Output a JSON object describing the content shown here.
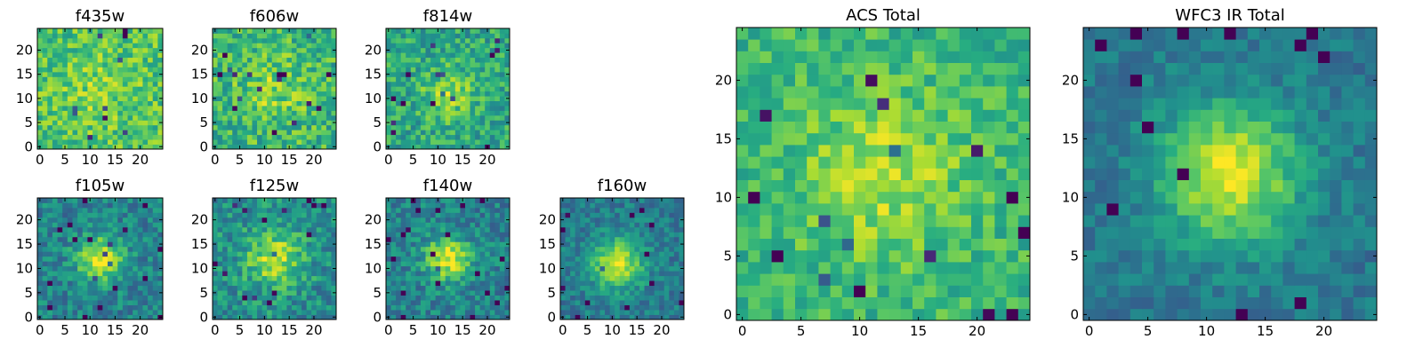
{
  "figure": {
    "colormap": "viridis",
    "background": "#ffffff",
    "frame_color": "#000000"
  },
  "chart_data": [
    {
      "type": "heatmap",
      "title": "f435w",
      "grid_size": 25,
      "x_ticks": [
        "0",
        "5",
        "10",
        "15",
        "20"
      ],
      "y_ticks": [
        "0",
        "5",
        "10",
        "15",
        "20"
      ],
      "xlim": [
        -0.5,
        24.5
      ],
      "ylim": [
        -0.5,
        24.5
      ],
      "center": [
        12,
        12
      ],
      "peak_strength": 0.1,
      "spread": 5.0,
      "base": 0.72,
      "noise": 0.18,
      "seed": 11
    },
    {
      "type": "heatmap",
      "title": "f606w",
      "grid_size": 25,
      "x_ticks": [
        "0",
        "5",
        "10",
        "15",
        "20"
      ],
      "y_ticks": [
        "0",
        "5",
        "10",
        "15",
        "20"
      ],
      "xlim": [
        -0.5,
        24.5
      ],
      "ylim": [
        -0.5,
        24.5
      ],
      "center": [
        12,
        12
      ],
      "peak_strength": 0.15,
      "spread": 5.0,
      "base": 0.66,
      "noise": 0.2,
      "seed": 23
    },
    {
      "type": "heatmap",
      "title": "f814w",
      "grid_size": 25,
      "x_ticks": [
        "0",
        "5",
        "10",
        "15",
        "20"
      ],
      "y_ticks": [
        "0",
        "5",
        "10",
        "15",
        "20"
      ],
      "xlim": [
        -0.5,
        24.5
      ],
      "ylim": [
        -0.5,
        24.5
      ],
      "center": [
        12,
        11
      ],
      "peak_strength": 0.25,
      "spread": 3.5,
      "base": 0.6,
      "noise": 0.18,
      "seed": 37
    },
    {
      "type": "heatmap",
      "title": "f105w",
      "grid_size": 25,
      "x_ticks": [
        "0",
        "5",
        "10",
        "15",
        "20"
      ],
      "y_ticks": [
        "0",
        "5",
        "10",
        "15",
        "20"
      ],
      "xlim": [
        -0.5,
        24.5
      ],
      "ylim": [
        -0.5,
        24.5
      ],
      "center": [
        12,
        12
      ],
      "peak_strength": 0.5,
      "spread": 3.2,
      "base": 0.45,
      "noise": 0.16,
      "seed": 41
    },
    {
      "type": "heatmap",
      "title": "f125w",
      "grid_size": 25,
      "x_ticks": [
        "0",
        "5",
        "10",
        "15",
        "20"
      ],
      "y_ticks": [
        "0",
        "5",
        "10",
        "15",
        "20"
      ],
      "xlim": [
        -0.5,
        24.5
      ],
      "ylim": [
        -0.5,
        24.5
      ],
      "center": [
        12,
        12
      ],
      "peak_strength": 0.4,
      "spread": 4.0,
      "base": 0.5,
      "noise": 0.18,
      "seed": 53
    },
    {
      "type": "heatmap",
      "title": "f140w",
      "grid_size": 25,
      "x_ticks": [
        "0",
        "5",
        "10",
        "15",
        "20"
      ],
      "y_ticks": [
        "0",
        "5",
        "10",
        "15",
        "20"
      ],
      "xlim": [
        -0.5,
        24.5
      ],
      "ylim": [
        -0.5,
        24.5
      ],
      "center": [
        12,
        12
      ],
      "peak_strength": 0.5,
      "spread": 3.2,
      "base": 0.45,
      "noise": 0.16,
      "seed": 67
    },
    {
      "type": "heatmap",
      "title": "f160w",
      "grid_size": 25,
      "x_ticks": [
        "0",
        "5",
        "10",
        "15",
        "20"
      ],
      "y_ticks": [
        "0",
        "5",
        "10",
        "15",
        "20"
      ],
      "xlim": [
        -0.5,
        24.5
      ],
      "ylim": [
        -0.5,
        24.5
      ],
      "center": [
        11,
        11
      ],
      "peak_strength": 0.55,
      "spread": 3.5,
      "base": 0.42,
      "noise": 0.13,
      "seed": 79
    },
    {
      "type": "heatmap",
      "title": "ACS Total",
      "grid_size": 25,
      "x_ticks": [
        "0",
        "5",
        "10",
        "15",
        "20"
      ],
      "y_ticks": [
        "0",
        "5",
        "10",
        "15",
        "20"
      ],
      "xlim": [
        -0.5,
        24.5
      ],
      "ylim": [
        -0.5,
        24.5
      ],
      "center": [
        12,
        12
      ],
      "peak_strength": 0.22,
      "spread": 5.0,
      "base": 0.66,
      "noise": 0.14,
      "seed": 83
    },
    {
      "type": "heatmap",
      "title": "WFC3 IR Total",
      "grid_size": 25,
      "x_ticks": [
        "0",
        "5",
        "10",
        "15",
        "20"
      ],
      "y_ticks": [
        "0",
        "5",
        "10",
        "15",
        "20"
      ],
      "xlim": [
        -0.5,
        24.5
      ],
      "ylim": [
        -0.5,
        24.5
      ],
      "center": [
        12,
        12
      ],
      "peak_strength": 0.55,
      "spread": 4.2,
      "base": 0.4,
      "noise": 0.1,
      "seed": 97
    }
  ]
}
